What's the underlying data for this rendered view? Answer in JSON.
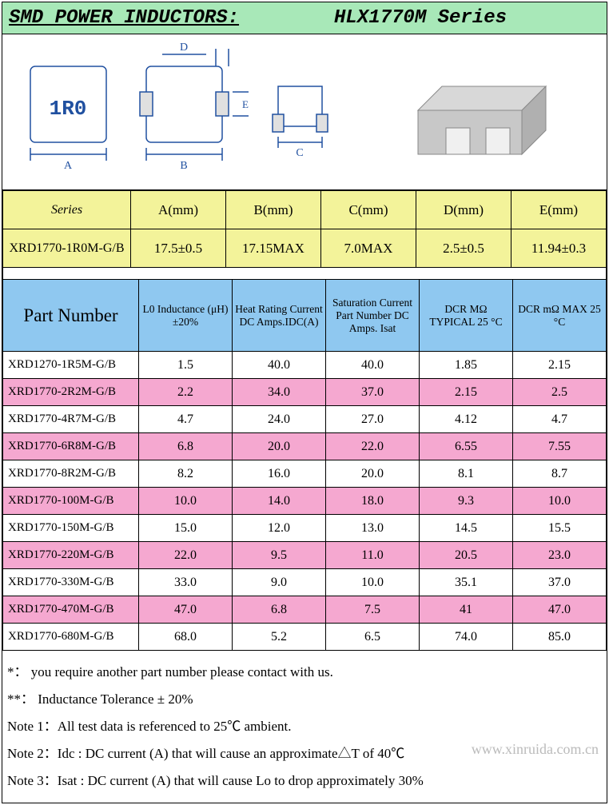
{
  "title_left": "SMD POWER INDUCTORS:",
  "title_right": "HLX1770M Series",
  "colors": {
    "title_bg": "#a8e8b8",
    "dim_header_bg": "#f3f39a",
    "dim_row_bg": "#f3f39a",
    "spec_header_bg": "#8fc8f0",
    "row_odd_bg": "#ffffff",
    "row_even_bg": "#f5a8d0",
    "border": "#000000",
    "diagram_line": "#2050a0"
  },
  "diagram": {
    "part_marking": "1R0",
    "dims": [
      "A",
      "B",
      "C",
      "D",
      "E"
    ]
  },
  "dim_table": {
    "headers": [
      "Series",
      "A(mm)",
      "B(mm)",
      "C(mm)",
      "D(mm)",
      "E(mm)"
    ],
    "row": {
      "series": "XRD1770-1R0M-G/B",
      "A": "17.5±0.5",
      "B": "17.15MAX",
      "C": "7.0MAX",
      "D": "2.5±0.5",
      "E": "11.94±0.3"
    }
  },
  "spec_table": {
    "headers": [
      "Part Number",
      "L0 Inductance (μH) ±20%",
      "Heat Rating Current DC Amps.IDC(A)",
      "Saturation Current Part Number DC Amps. Isat",
      "DCR MΩ TYPICAL 25 °C",
      "DCR mΩ MAX 25 °C"
    ],
    "rows": [
      {
        "pn": "XRD1270-1R5M-G/B",
        "l0": "1.5",
        "heat": "40.0",
        "sat": "40.0",
        "dcr_typ": "1.85",
        "dcr_max": "2.15"
      },
      {
        "pn": "XRD1770-2R2M-G/B",
        "l0": "2.2",
        "heat": "34.0",
        "sat": "37.0",
        "dcr_typ": "2.15",
        "dcr_max": "2.5"
      },
      {
        "pn": "XRD1770-4R7M-G/B",
        "l0": "4.7",
        "heat": "24.0",
        "sat": "27.0",
        "dcr_typ": "4.12",
        "dcr_max": "4.7"
      },
      {
        "pn": "XRD1770-6R8M-G/B",
        "l0": "6.8",
        "heat": "20.0",
        "sat": "22.0",
        "dcr_typ": "6.55",
        "dcr_max": "7.55"
      },
      {
        "pn": "XRD1770-8R2M-G/B",
        "l0": "8.2",
        "heat": "16.0",
        "sat": "20.0",
        "dcr_typ": "8.1",
        "dcr_max": "8.7"
      },
      {
        "pn": "XRD1770-100M-G/B",
        "l0": "10.0",
        "heat": "14.0",
        "sat": "18.0",
        "dcr_typ": "9.3",
        "dcr_max": "10.0"
      },
      {
        "pn": "XRD1770-150M-G/B",
        "l0": "15.0",
        "heat": "12.0",
        "sat": "13.0",
        "dcr_typ": "14.5",
        "dcr_max": "15.5"
      },
      {
        "pn": "XRD1770-220M-G/B",
        "l0": "22.0",
        "heat": "9.5",
        "sat": "11.0",
        "dcr_typ": "20.5",
        "dcr_max": "23.0"
      },
      {
        "pn": "XRD1770-330M-G/B",
        "l0": "33.0",
        "heat": "9.0",
        "sat": "10.0",
        "dcr_typ": "35.1",
        "dcr_max": "37.0"
      },
      {
        "pn": "XRD1770-470M-G/B",
        "l0": "47.0",
        "heat": "6.8",
        "sat": "7.5",
        "dcr_typ": "41",
        "dcr_max": "47.0"
      },
      {
        "pn": "XRD1770-680M-G/B",
        "l0": "68.0",
        "heat": "5.2",
        "sat": "6.5",
        "dcr_typ": "74.0",
        "dcr_max": "85.0"
      }
    ]
  },
  "notes": [
    "*： you require another part number please contact with us.",
    "**： Inductance Tolerance ± 20%",
    "Note 1：All test data is referenced to 25℃ ambient.",
    "Note 2：Idc : DC current (A) that will cause an approximate△T of 40℃",
    "Note 3：Isat : DC current (A) that will cause Lo to drop approximately 30%"
  ],
  "watermark": "www.xinruida.com.cn"
}
